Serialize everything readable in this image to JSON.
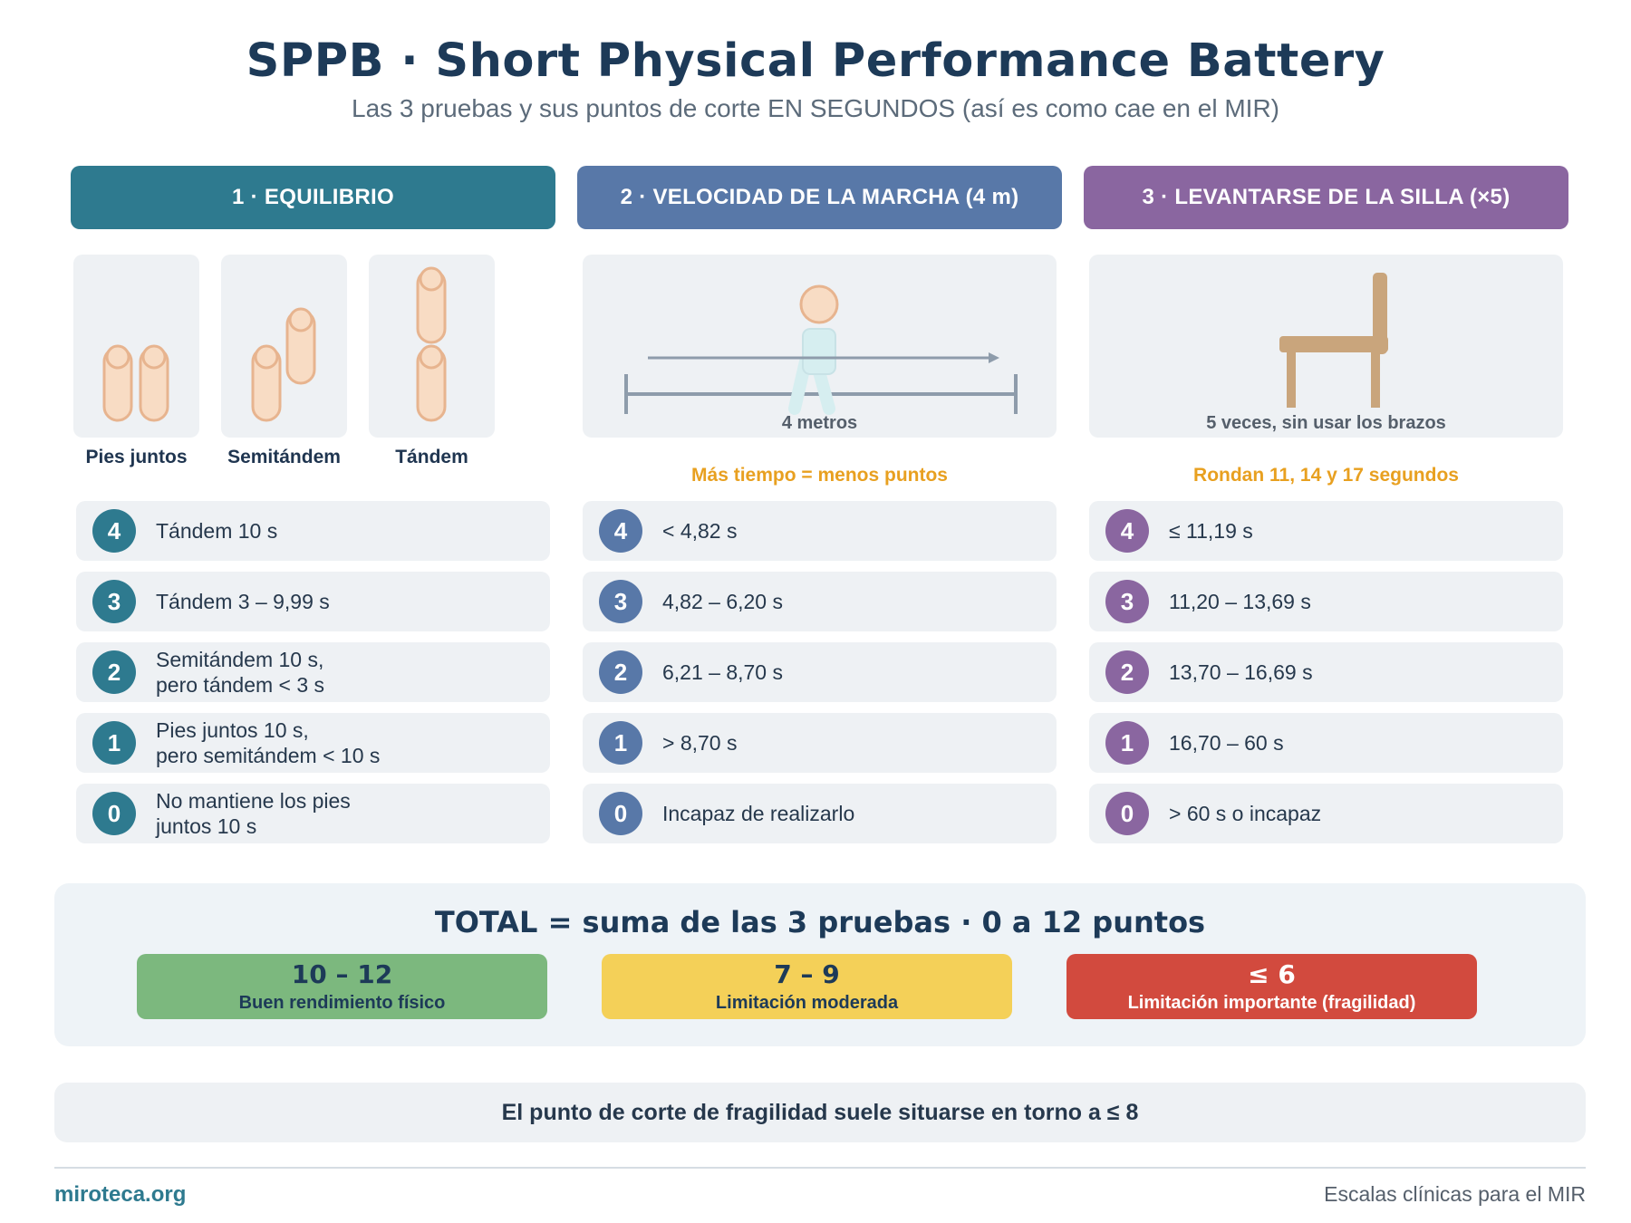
{
  "header": {
    "title": "SPPB · Short Physical Performance Battery",
    "subtitle": "Las 3 pruebas y sus puntos de corte EN SEGUNDOS (así es como cae en el MIR)"
  },
  "colors": {
    "equilibrio": "#2e7a8f",
    "marcha": "#5878a8",
    "silla": "#8a66a0",
    "note": "#e8a020",
    "good": "#7cb87e",
    "moderate": "#f4d058",
    "severe": "#d24a3e"
  },
  "tests": [
    {
      "header": "1 · EQUILIBRIO",
      "positions": [
        "Pies juntos",
        "Semitándem",
        "Tándem"
      ],
      "rows": [
        {
          "score": "4",
          "text": "Tándem 10 s"
        },
        {
          "score": "3",
          "text": "Tándem 3 – 9,99 s"
        },
        {
          "score": "2",
          "text": "Semitándem 10 s,\npero tándem < 3 s"
        },
        {
          "score": "1",
          "text": "Pies juntos 10 s,\npero semitándem < 10 s"
        },
        {
          "score": "0",
          "text": "No mantiene los pies\njuntos 10 s"
        }
      ]
    },
    {
      "header": "2 · VELOCIDAD DE LA MARCHA (4 m)",
      "caption": "4 metros",
      "note": "Más tiempo = menos puntos",
      "rows": [
        {
          "score": "4",
          "text": "< 4,82 s"
        },
        {
          "score": "3",
          "text": "4,82 – 6,20 s"
        },
        {
          "score": "2",
          "text": "6,21 – 8,70 s"
        },
        {
          "score": "1",
          "text": "> 8,70 s"
        },
        {
          "score": "0",
          "text": "Incapaz de realizarlo"
        }
      ]
    },
    {
      "header": "3 · LEVANTARSE DE LA SILLA (×5)",
      "caption": "5 veces, sin usar los brazos",
      "note": "Rondan 11, 14 y 17 segundos",
      "rows": [
        {
          "score": "4",
          "text": "≤ 11,19 s"
        },
        {
          "score": "3",
          "text": "11,20 – 13,69 s"
        },
        {
          "score": "2",
          "text": "13,70 – 16,69 s"
        },
        {
          "score": "1",
          "text": "16,70 – 60 s"
        },
        {
          "score": "0",
          "text": "> 60 s o incapaz"
        }
      ]
    }
  ],
  "total": {
    "title": "TOTAL = suma de las 3 pruebas  ·  0 a 12 puntos",
    "ranges": [
      {
        "range": "10 – 12",
        "label": "Buen rendimiento físico"
      },
      {
        "range": "7 – 9",
        "label": "Limitación moderada"
      },
      {
        "range": "≤ 6",
        "label": "Limitación importante (fragilidad)"
      }
    ]
  },
  "footnote": "El punto de corte de fragilidad suele situarse en torno a ≤ 8",
  "footer": {
    "brand": "miroteca.org",
    "tagline": "Escalas clínicas para el MIR"
  }
}
